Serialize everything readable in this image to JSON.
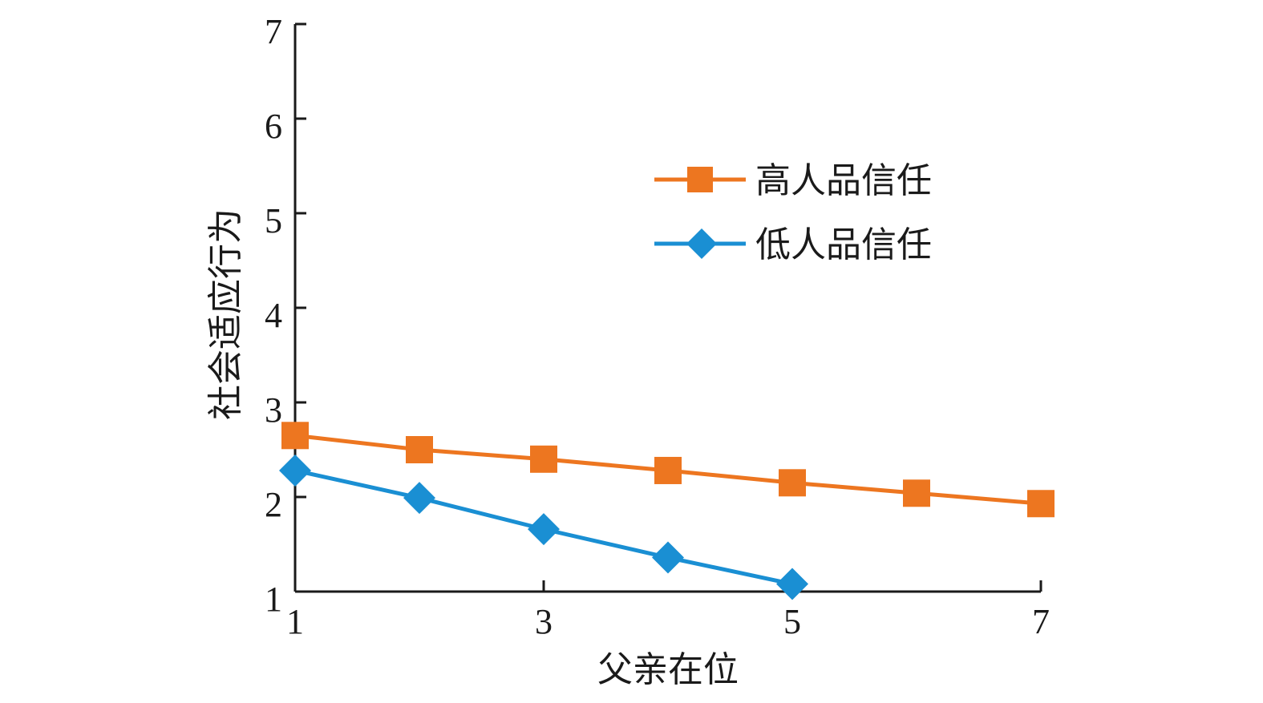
{
  "chart_data": {
    "type": "line",
    "xlabel": "父亲在位",
    "ylabel": "社会适应行为",
    "xlim": [
      1,
      7
    ],
    "ylim": [
      1,
      7
    ],
    "xticks": [
      1,
      3,
      5,
      7
    ],
    "yticks": [
      1,
      2,
      3,
      4,
      5,
      6,
      7
    ],
    "grid": false,
    "legend_position": "upper-right",
    "series": [
      {
        "name": "高人品信任",
        "color": "#ED7620",
        "marker": "square",
        "x": [
          1,
          2,
          3,
          4,
          5,
          6,
          7
        ],
        "y": [
          2.65,
          2.5,
          2.4,
          2.28,
          2.15,
          2.04,
          1.93
        ]
      },
      {
        "name": "低人品信任",
        "color": "#1A8FD3",
        "marker": "diamond",
        "x": [
          1,
          2,
          3,
          4,
          5
        ],
        "y": [
          2.28,
          1.99,
          1.66,
          1.36,
          1.08
        ]
      }
    ]
  }
}
